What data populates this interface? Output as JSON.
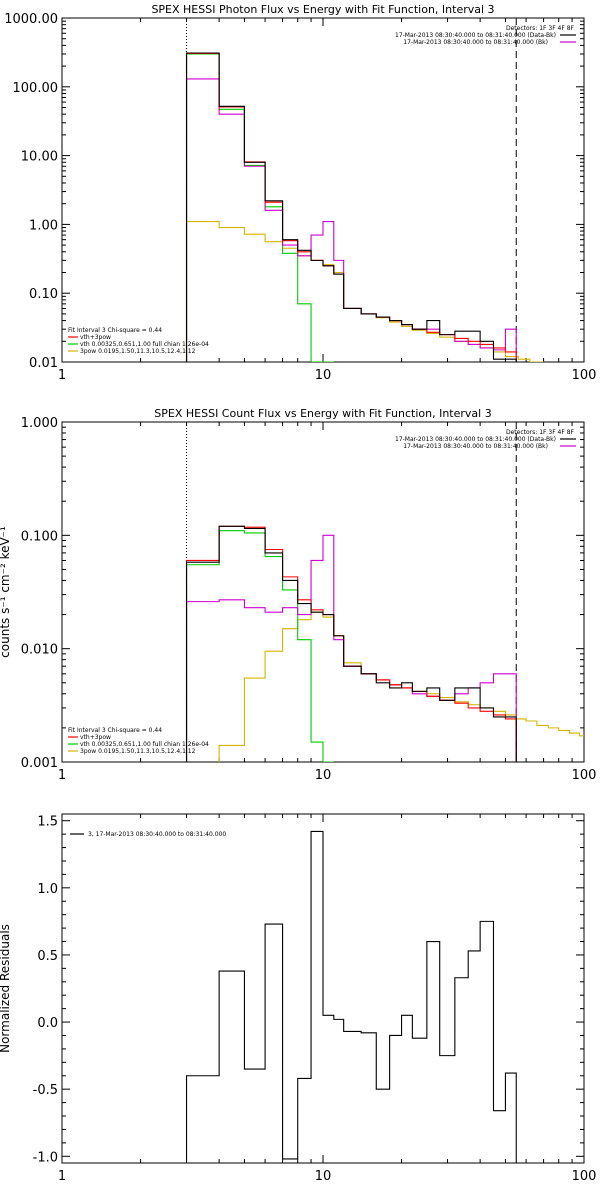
{
  "chart_data": [
    {
      "type": "line",
      "title": "SPEX HESSI Photon Flux vs Energy with Fit Function, Interval 3",
      "ylabel": "",
      "xlabel": "",
      "xscale": "log",
      "yscale": "log",
      "xlim": [
        1,
        100
      ],
      "ylim": [
        0.01,
        1000
      ],
      "x_ticks": [
        "1",
        "10",
        "100"
      ],
      "y_ticks": [
        "0.01",
        "0.10",
        "1.00",
        "10.00",
        "100.00",
        "1000.00"
      ],
      "vlines": [
        {
          "x": 3.0,
          "style": "dotted"
        },
        {
          "x": 55.0,
          "style": "dashed"
        }
      ],
      "legend_top": {
        "header": "Detectors: 1F 3F 4F 8F",
        "entries": [
          {
            "label": "17-Mar-2013 08:30:40.000 to 08:31:40.000 (Data-Bk)",
            "color": "#000000"
          },
          {
            "label": "17-Mar-2013 08:30:40.000 to 08:31:40.000 (Bk)",
            "color": "#d000d0"
          }
        ]
      },
      "legend_bottom": {
        "header": "Fit Interval 3   Chi-square = 0.44",
        "entries": [
          {
            "label": "vth+3pow",
            "color": "#ff0000"
          },
          {
            "label": "vth 0.00325,0.651,1.00  full chian 1.26e-04",
            "color": "#00cc00"
          },
          {
            "label": "3pow 0.0195,1.50,11.3,10.5,12.4,1.12",
            "color": "#d4b400"
          }
        ]
      },
      "edges": [
        3,
        4,
        5,
        6,
        7,
        8,
        9,
        10,
        11,
        12,
        14,
        16,
        18,
        20,
        22,
        25,
        28,
        32,
        36,
        40,
        45,
        50,
        55
      ],
      "series": [
        {
          "name": "Data-Bk",
          "color": "#000000",
          "values": [
            310,
            52,
            8,
            2.2,
            0.6,
            0.42,
            0.3,
            0.25,
            0.19,
            0.06,
            0.05,
            0.045,
            0.04,
            0.035,
            0.03,
            0.04,
            0.025,
            0.028,
            0.028,
            0.02,
            0.011,
            0.011
          ]
        },
        {
          "name": "vth+3pow",
          "color": "#ff0000",
          "values": [
            305,
            51,
            8.1,
            2.1,
            0.58,
            0.4,
            0.3,
            0.25,
            0.19,
            0.06,
            0.05,
            0.045,
            0.04,
            0.035,
            0.03,
            0.027,
            0.025,
            0.022,
            0.02,
            0.018,
            0.016,
            0.014
          ]
        },
        {
          "name": "Bk",
          "color": "#d000d0",
          "values": [
            130,
            40,
            7,
            1.6,
            0.5,
            0.35,
            0.7,
            1.1,
            0.3,
            0.06,
            0.05,
            0.045,
            0.04,
            0.035,
            0.03,
            0.03,
            0.025,
            0.02,
            0.018,
            0.016,
            0.015,
            0.03
          ]
        },
        {
          "name": "vth",
          "color": "#00cc00",
          "values": [
            300,
            47,
            7.2,
            1.8,
            0.38,
            0.07,
            0.01,
            0.01
          ]
        },
        {
          "name": "3pow",
          "color": "#d4b400",
          "edges_override": [
            3,
            4,
            5,
            6,
            7,
            8,
            9,
            10,
            11,
            12,
            14,
            16,
            18,
            20,
            22,
            25,
            28,
            32,
            36,
            40,
            45,
            50,
            56,
            62,
            70
          ],
          "values": [
            1.1,
            0.9,
            0.72,
            0.56,
            0.45,
            0.35,
            0.3,
            0.26,
            0.2,
            0.06,
            0.05,
            0.044,
            0.038,
            0.033,
            0.029,
            0.026,
            0.023,
            0.02,
            0.018,
            0.016,
            0.014,
            0.012,
            0.011,
            0.01
          ]
        }
      ]
    },
    {
      "type": "line",
      "title": "SPEX HESSI Count Flux vs Energy with Fit Function, Interval 3",
      "ylabel": "counts s⁻¹ cm⁻² keV⁻¹",
      "xlabel": "",
      "xscale": "log",
      "yscale": "log",
      "xlim": [
        1,
        100
      ],
      "ylim": [
        0.001,
        1
      ],
      "x_ticks": [
        "1",
        "10",
        "100"
      ],
      "y_ticks": [
        "0.001",
        "0.010",
        "0.100",
        "1.000"
      ],
      "vlines": [
        {
          "x": 3.0,
          "style": "dotted"
        },
        {
          "x": 55.0,
          "style": "dashed"
        }
      ],
      "legend_top": {
        "header": "Detectors: 1F 3F 4F 8F",
        "entries": [
          {
            "label": "17-Mar-2013 08:30:40.000 to 08:31:40.000 (Data-Bk)",
            "color": "#000000"
          },
          {
            "label": "17-Mar-2013 08:30:40.000 to 08:31:40.000 (Bk)",
            "color": "#d000d0"
          }
        ]
      },
      "legend_bottom": {
        "header": "Fit Interval 3   Chi-square = 0.44",
        "entries": [
          {
            "label": "vth+3pow",
            "color": "#ff0000"
          },
          {
            "label": "vth 0.00325,0.651,1.00  full chian 1.26e-04",
            "color": "#00cc00"
          },
          {
            "label": "3pow 0.0195,1.50,11.3,10.5,12.4,1.12",
            "color": "#d4b400"
          }
        ]
      },
      "edges": [
        3,
        4,
        5,
        6,
        7,
        8,
        9,
        10,
        11,
        12,
        14,
        16,
        18,
        20,
        22,
        25,
        28,
        32,
        36,
        40,
        45,
        50,
        55
      ],
      "series": [
        {
          "name": "Data-Bk",
          "color": "#000000",
          "values": [
            0.058,
            0.12,
            0.115,
            0.07,
            0.04,
            0.025,
            0.021,
            0.02,
            0.013,
            0.007,
            0.006,
            0.005,
            0.0045,
            0.005,
            0.0042,
            0.0045,
            0.0035,
            0.0045,
            0.0045,
            0.003,
            0.0025,
            0.0025
          ]
        },
        {
          "name": "vth+3pow",
          "color": "#ff0000",
          "values": [
            0.06,
            0.12,
            0.118,
            0.075,
            0.043,
            0.027,
            0.022,
            0.02,
            0.013,
            0.007,
            0.006,
            0.0053,
            0.0048,
            0.0045,
            0.0042,
            0.0038,
            0.0035,
            0.0033,
            0.003,
            0.0028,
            0.0026,
            0.0024
          ]
        },
        {
          "name": "Bk",
          "color": "#d000d0",
          "values": [
            0.026,
            0.027,
            0.023,
            0.021,
            0.023,
            0.02,
            0.06,
            0.1,
            0.012,
            0.007,
            0.006,
            0.0053,
            0.0048,
            0.0045,
            0.004,
            0.0038,
            0.0035,
            0.004,
            0.0045,
            0.005,
            0.006,
            0.006
          ]
        },
        {
          "name": "vth",
          "color": "#00cc00",
          "values": [
            0.055,
            0.11,
            0.105,
            0.065,
            0.033,
            0.012,
            0.0015,
            0.001
          ]
        },
        {
          "name": "3pow",
          "color": "#d4b400",
          "edges_override": [
            4,
            5,
            6,
            7,
            8,
            9,
            10,
            11,
            12,
            14,
            16,
            18,
            20,
            22,
            25,
            28,
            32,
            36,
            40,
            45,
            50,
            55,
            60,
            66,
            73,
            80,
            88,
            96,
            100
          ],
          "values": [
            0.0014,
            0.0055,
            0.0095,
            0.015,
            0.018,
            0.021,
            0.019,
            0.013,
            0.0075,
            0.006,
            0.0053,
            0.0048,
            0.0045,
            0.0042,
            0.004,
            0.0037,
            0.0034,
            0.0032,
            0.003,
            0.0028,
            0.0026,
            0.0024,
            0.0023,
            0.0021,
            0.002,
            0.0019,
            0.0018,
            0.0017
          ]
        }
      ]
    },
    {
      "type": "line",
      "title": "",
      "ylabel": "Normalized Residuals",
      "xlabel": "",
      "xscale": "log",
      "yscale": "linear",
      "xlim": [
        1,
        100
      ],
      "ylim": [
        -1.05,
        1.55
      ],
      "x_ticks": [
        "1",
        "10",
        "100"
      ],
      "y_ticks": [
        "-1.0",
        "-0.5",
        "0.0",
        "0.5",
        "1.0",
        "1.5"
      ],
      "y_tick_values": [
        -1.0,
        -0.5,
        0.0,
        0.5,
        1.0,
        1.5
      ],
      "legend_top": {
        "header": "",
        "entries": [
          {
            "label": "3, 17-Mar-2013 08:30:40.000 to 08:31:40.000",
            "color": "#000000"
          }
        ]
      },
      "edges": [
        3,
        4,
        5,
        6,
        7,
        8,
        9,
        10,
        11,
        12,
        14,
        16,
        18,
        20,
        22,
        25,
        28,
        32,
        36,
        40,
        45,
        50,
        55
      ],
      "series": [
        {
          "name": "residuals",
          "color": "#000000",
          "values": [
            -0.4,
            0.38,
            -0.35,
            0.73,
            -1.02,
            -0.42,
            1.42,
            0.05,
            0.02,
            -0.07,
            -0.08,
            -0.5,
            -0.1,
            0.05,
            -0.12,
            0.6,
            -0.25,
            0.33,
            0.53,
            0.75,
            -0.66,
            -0.38
          ]
        }
      ]
    }
  ]
}
